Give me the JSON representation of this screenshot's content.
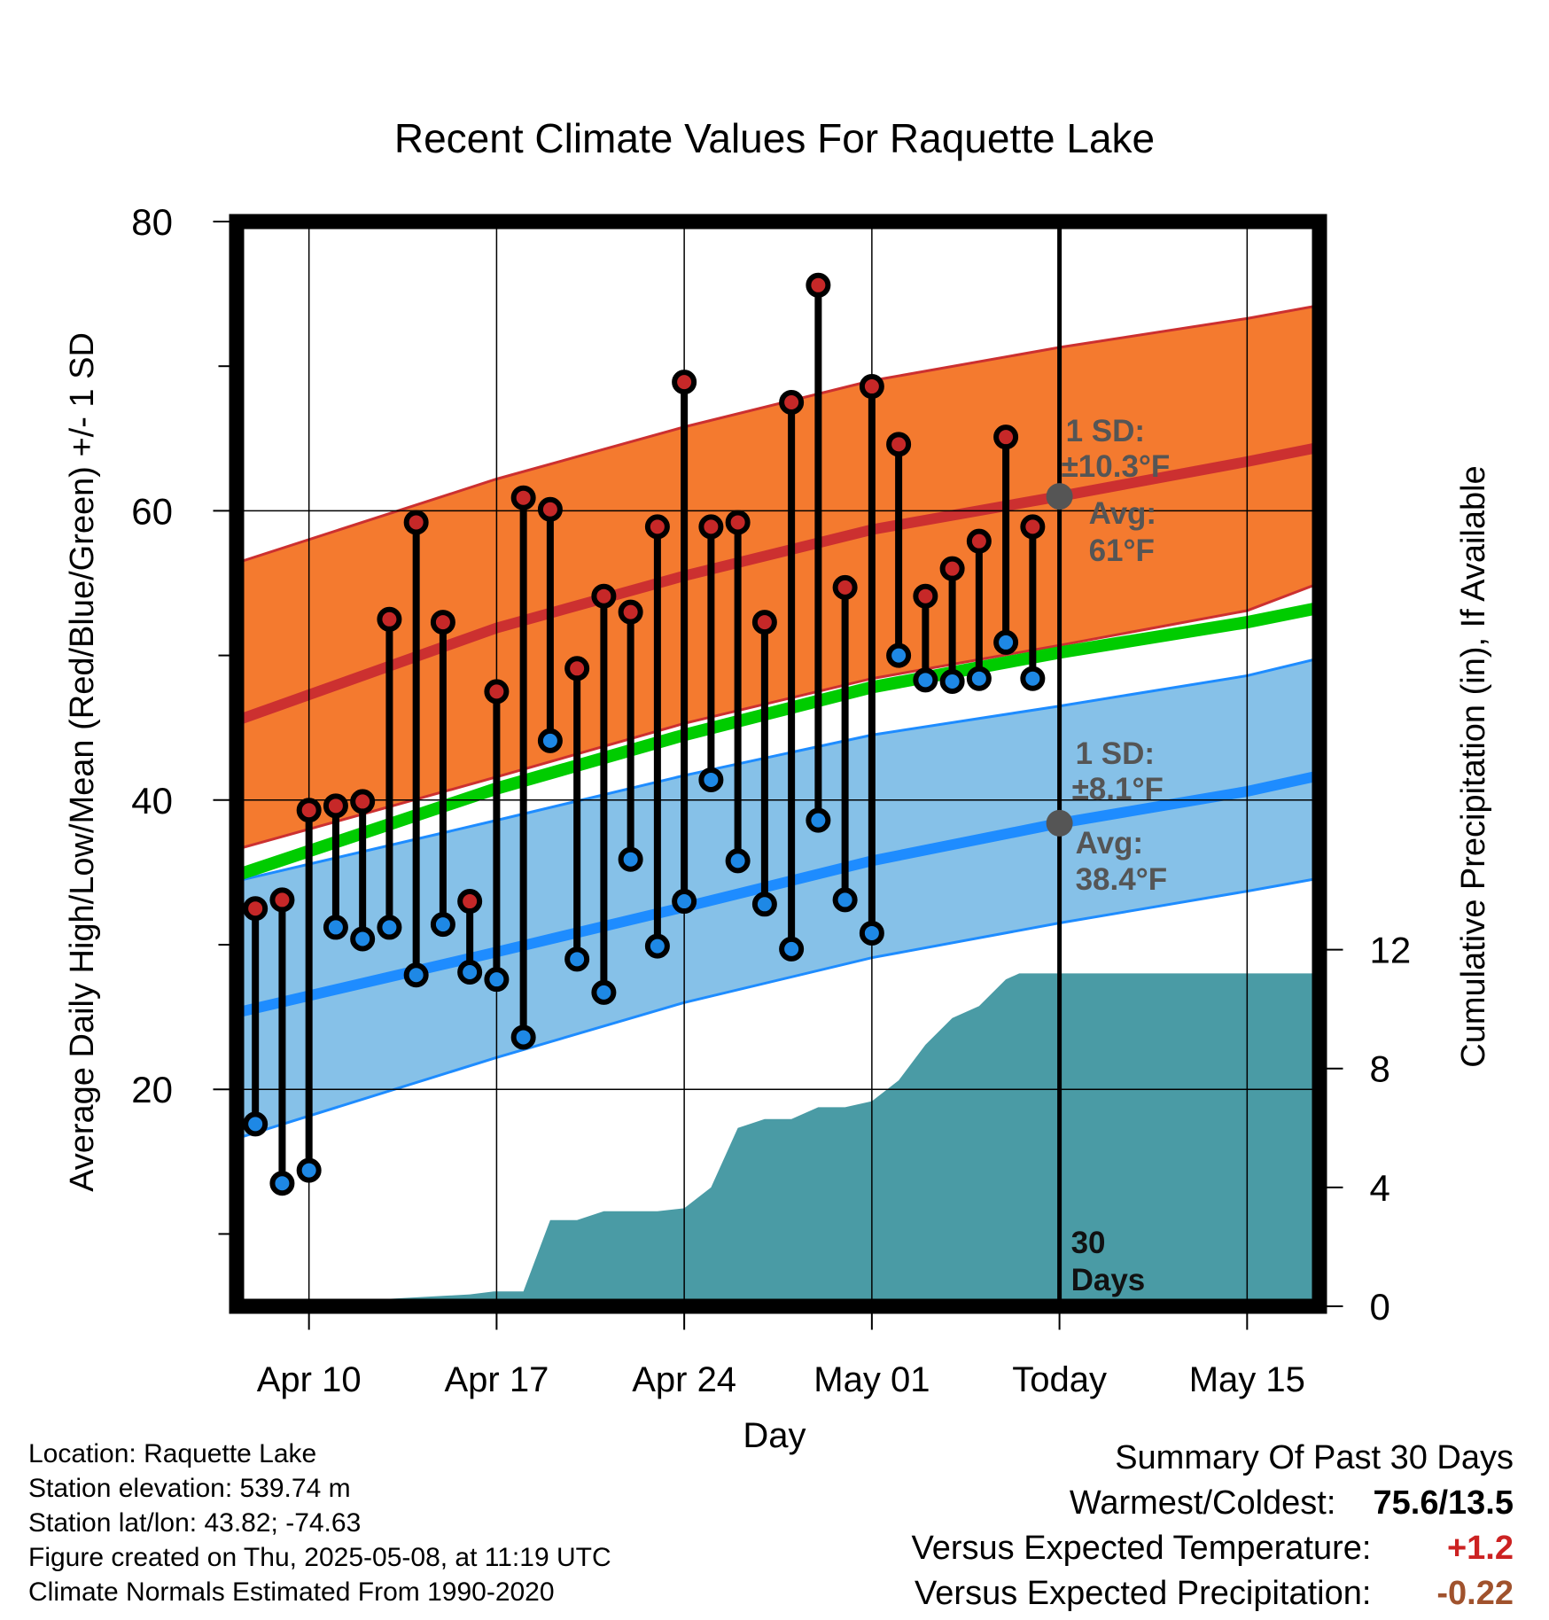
{
  "chart_data": {
    "type": "line",
    "title": "Recent Climate Values For Raquette Lake",
    "xlabel": "Day",
    "ylabel": "Average Daily High/Low/Mean (Red/Blue/Green) +/- 1 SD",
    "y2label": "Cumulative Precipitation (in), If Available",
    "x_ticks": [
      "Apr 10",
      "Apr 17",
      "Apr 24",
      "May 01",
      "Today",
      "May 15"
    ],
    "x_tick_day": [
      0,
      7,
      14,
      21,
      28,
      35
    ],
    "xlim_day": [
      -2.7,
      37.7
    ],
    "ylim": [
      5,
      80
    ],
    "y_ticks": [
      20,
      40,
      60,
      80
    ],
    "y2lim": [
      0,
      36.5
    ],
    "y2_ticks": [
      0,
      4,
      8,
      12
    ],
    "normals": {
      "day": [
        -2.7,
        7,
        14,
        21,
        28,
        35,
        37.7
      ],
      "high_upper": [
        56.4,
        62.2,
        65.8,
        69.0,
        71.3,
        73.3,
        74.2
      ],
      "high_mean": [
        45.5,
        51.9,
        55.5,
        58.7,
        61.0,
        63.4,
        64.4
      ],
      "high_lower": [
        36.6,
        41.6,
        45.3,
        48.4,
        50.7,
        53.1,
        55.0
      ],
      "mean": [
        34.8,
        40.8,
        44.5,
        47.8,
        50.2,
        52.3,
        53.3
      ],
      "low_upper": [
        34.4,
        38.6,
        41.7,
        44.5,
        46.5,
        48.6,
        49.8
      ],
      "low_mean": [
        25.3,
        29.5,
        32.6,
        35.8,
        38.4,
        40.6,
        41.7
      ],
      "low_lower": [
        16.6,
        22.2,
        26.0,
        29.1,
        31.5,
        33.7,
        34.6
      ]
    },
    "series": [
      {
        "name": "High",
        "color": "#c62828",
        "day": [
          -2,
          -1,
          0,
          1,
          2,
          3,
          4,
          5,
          6,
          7,
          8,
          9,
          10,
          11,
          12,
          13,
          14,
          15,
          16,
          17,
          18,
          19,
          20,
          21,
          22,
          23,
          24,
          25,
          26,
          27
        ],
        "values": [
          32.5,
          33.1,
          39.3,
          39.6,
          39.9,
          52.5,
          59.2,
          52.3,
          33.0,
          47.5,
          60.9,
          60.1,
          49.1,
          54.1,
          53.0,
          58.9,
          68.9,
          58.9,
          59.2,
          52.3,
          67.5,
          75.6,
          54.7,
          68.6,
          64.6,
          54.1,
          56.0,
          57.9,
          65.1,
          58.9
        ]
      },
      {
        "name": "Low",
        "color": "#1e88e5",
        "day": [
          -2,
          -1,
          0,
          1,
          2,
          3,
          4,
          5,
          6,
          7,
          8,
          9,
          10,
          11,
          12,
          13,
          14,
          15,
          16,
          17,
          18,
          19,
          20,
          21,
          22,
          23,
          24,
          25,
          26,
          27
        ],
        "values": [
          17.6,
          13.5,
          14.4,
          31.2,
          30.4,
          31.2,
          27.9,
          31.4,
          28.1,
          27.6,
          23.6,
          44.1,
          29.0,
          26.7,
          35.9,
          29.9,
          33.0,
          41.4,
          35.8,
          32.8,
          29.7,
          38.6,
          33.1,
          30.8,
          50.0,
          48.3,
          48.2,
          48.4,
          50.9,
          48.4
        ]
      },
      {
        "name": "Cumulative Precipitation",
        "color": "#4a9ba5",
        "day": [
          -2.7,
          2,
          6,
          6.9,
          8,
          9,
          10,
          11,
          12,
          13,
          14,
          15,
          16,
          17,
          18,
          19,
          20,
          21,
          22,
          23,
          24,
          25,
          26,
          26.5,
          28,
          37.7
        ],
        "values": [
          0,
          0.2,
          0.4,
          0.5,
          0.5,
          2.9,
          2.9,
          3.2,
          3.2,
          3.2,
          3.3,
          4.0,
          6.0,
          6.3,
          6.3,
          6.7,
          6.7,
          6.9,
          7.6,
          8.8,
          9.7,
          10.1,
          11.0,
          11.2,
          11.2,
          11.2
        ]
      }
    ],
    "annotations": {
      "high_sd_label_1": "1 SD:",
      "high_sd_label_2": "±10.3°F",
      "high_avg_label_1": "Avg:",
      "high_avg_label_2": "61°F",
      "high_avg_value": 61.0,
      "low_sd_label_1": "1 SD:",
      "low_sd_label_2": "±8.1°F",
      "low_avg_label_1": "Avg:",
      "low_avg_label_2": "38.4°F",
      "low_avg_value": 38.4,
      "window_label_1": "30",
      "window_label_2": "Days"
    },
    "colors": {
      "high_band": "#f47a2f",
      "high_line": "#cc3030",
      "low_band": "#86c1e8",
      "low_line": "#1e8cff",
      "mean_line": "#00cc00",
      "precip_fill": "#4a9ba5",
      "annotation": "#555555"
    }
  },
  "footer": {
    "location": "Location: Raquette Lake",
    "elevation": "Station elevation: 539.74 m",
    "latlon": "Station lat/lon: 43.82; -74.63",
    "created": "Figure created on Thu, 2025-05-08, at 11:19 UTC",
    "normals": "Climate Normals Estimated From 1990-2020"
  },
  "summary": {
    "title": "Summary Of Past 30 Days",
    "warm_cold_label": "Warmest/Coldest:",
    "warm_cold_value": "75.6/13.5",
    "temp_label": "Versus Expected Temperature:",
    "temp_value": "+1.2",
    "temp_color": "#cc2222",
    "precip_label": "Versus Expected Precipitation:",
    "precip_value": "-0.22",
    "precip_color": "#a0522d"
  }
}
